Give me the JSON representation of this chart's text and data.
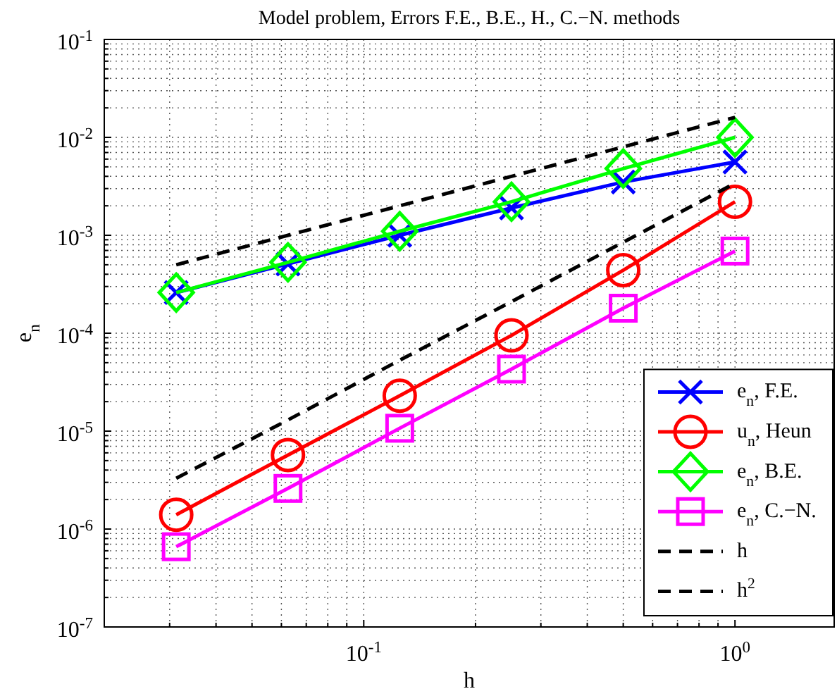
{
  "chart_data": {
    "type": "line",
    "title": "Model problem, Errors F.E., B.E., H., C.−N. methods",
    "xlabel": "h",
    "ylabel": "e$_{n}$",
    "log": "xy",
    "grid": true,
    "legend": "bottom right",
    "x": [
      0.03125,
      0.0625,
      0.125,
      0.25,
      0.5,
      1
    ],
    "xlim": [
      0.02,
      1.85
    ],
    "xticks": [
      {
        "value": 0.02,
        "label": null
      },
      {
        "value": 0.03,
        "label": null
      },
      {
        "value": 0.04,
        "label": null
      },
      {
        "value": 0.05,
        "label": null
      },
      {
        "value": 0.06,
        "label": null
      },
      {
        "value": 0.07,
        "label": null
      },
      {
        "value": 0.08,
        "label": null
      },
      {
        "value": 0.09,
        "label": null
      },
      {
        "value": 0.1,
        "label": "10$^{-1}$"
      },
      {
        "value": 0.2,
        "label": null
      },
      {
        "value": 0.3,
        "label": null
      },
      {
        "value": 0.4,
        "label": null
      },
      {
        "value": 0.5,
        "label": null
      },
      {
        "value": 0.6,
        "label": null
      },
      {
        "value": 0.7,
        "label": null
      },
      {
        "value": 0.8,
        "label": null
      },
      {
        "value": 0.9,
        "label": null
      },
      {
        "value": 1,
        "label": "10$^{0}$"
      }
    ],
    "ylim": [
      1e-07,
      0.1
    ],
    "yticks": [
      {
        "value": 1e-07,
        "label": "10$^{-7}$"
      },
      {
        "value": 2e-07,
        "label": null
      },
      {
        "value": 3e-07,
        "label": null
      },
      {
        "value": 4e-07,
        "label": null
      },
      {
        "value": 5e-07,
        "label": null
      },
      {
        "value": 6e-07,
        "label": null
      },
      {
        "value": 7e-07,
        "label": null
      },
      {
        "value": 8e-07,
        "label": null
      },
      {
        "value": 9e-07,
        "label": null
      },
      {
        "value": 1e-06,
        "label": "10$^{-6}$"
      },
      {
        "value": 2e-06,
        "label": null
      },
      {
        "value": 3e-06,
        "label": null
      },
      {
        "value": 4e-06,
        "label": null
      },
      {
        "value": 5e-06,
        "label": null
      },
      {
        "value": 6e-06,
        "label": null
      },
      {
        "value": 7e-06,
        "label": null
      },
      {
        "value": 8e-06,
        "label": null
      },
      {
        "value": 9e-06,
        "label": null
      },
      {
        "value": 1e-05,
        "label": "10$^{-5}$"
      },
      {
        "value": 2e-05,
        "label": null
      },
      {
        "value": 3e-05,
        "label": null
      },
      {
        "value": 4e-05,
        "label": null
      },
      {
        "value": 5e-05,
        "label": null
      },
      {
        "value": 6e-05,
        "label": null
      },
      {
        "value": 7e-05,
        "label": null
      },
      {
        "value": 8e-05,
        "label": null
      },
      {
        "value": 9e-05,
        "label": null
      },
      {
        "value": 0.0001,
        "label": "10$^{-4}$"
      },
      {
        "value": 0.0002,
        "label": null
      },
      {
        "value": 0.0003,
        "label": null
      },
      {
        "value": 0.0004,
        "label": null
      },
      {
        "value": 0.0005,
        "label": null
      },
      {
        "value": 0.0006,
        "label": null
      },
      {
        "value": 0.0007,
        "label": null
      },
      {
        "value": 0.0008,
        "label": null
      },
      {
        "value": 0.0009,
        "label": null
      },
      {
        "value": 0.001,
        "label": "10$^{-3}$"
      },
      {
        "value": 0.002,
        "label": null
      },
      {
        "value": 0.003,
        "label": null
      },
      {
        "value": 0.004,
        "label": null
      },
      {
        "value": 0.005,
        "label": null
      },
      {
        "value": 0.006,
        "label": null
      },
      {
        "value": 0.007,
        "label": null
      },
      {
        "value": 0.008,
        "label": null
      },
      {
        "value": 0.009,
        "label": null
      },
      {
        "value": 0.01,
        "label": "10$^{-2}$"
      },
      {
        "value": 0.02,
        "label": null
      },
      {
        "value": 0.03,
        "label": null
      },
      {
        "value": 0.04,
        "label": null
      },
      {
        "value": 0.05,
        "label": null
      },
      {
        "value": 0.06,
        "label": null
      },
      {
        "value": 0.07,
        "label": null
      },
      {
        "value": 0.08,
        "label": null
      },
      {
        "value": 0.09,
        "label": null
      },
      {
        "value": 0.1,
        "label": "10$^{-1}$"
      }
    ],
    "series": [
      {
        "name": "e$_{n}$, F.E.",
        "color": "#0000ff",
        "marker": "cross",
        "line_style": "solid",
        "values": [
          0.00026,
          0.00051,
          0.001,
          0.0019,
          0.0035,
          0.0056
        ]
      },
      {
        "name": "u$_{n}$, Heun",
        "color": "#ff0000",
        "marker": "circle",
        "line_style": "solid",
        "values": [
          1.4e-06,
          5.7e-06,
          2.3e-05,
          9.5e-05,
          0.00044,
          0.0022
        ]
      },
      {
        "name": "e$_{n}$, B.E.",
        "color": "#00ff00",
        "marker": "diamond",
        "line_style": "solid",
        "values": [
          0.00026,
          0.00053,
          0.0011,
          0.0022,
          0.0048,
          0.01
        ]
      },
      {
        "name": "e$_{n}$, C.−N.",
        "color": "#ff00ff",
        "marker": "square",
        "line_style": "solid",
        "values": [
          6.6e-07,
          2.6e-06,
          1.07e-05,
          4.3e-05,
          0.00018,
          0.00069
        ]
      },
      {
        "name": "h",
        "color": "#000000",
        "marker": "none",
        "line_style": "dashed",
        "values": [
          0.0005,
          0.001,
          0.002,
          0.004,
          0.008,
          0.016
        ]
      },
      {
        "name": "h$^{2}$",
        "color": "#000000",
        "marker": "none",
        "line_style": "dashed",
        "values": [
          3.3e-06,
          1.3e-05,
          5.3e-05,
          0.00021,
          0.00085,
          0.0034
        ]
      }
    ]
  }
}
